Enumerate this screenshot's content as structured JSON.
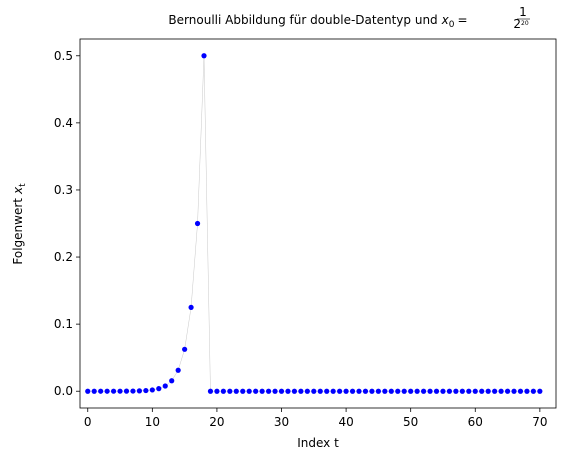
{
  "chart_data": {
    "type": "scatter",
    "title": "Bernoulli Abbildung für double-Datentyp und",
    "title_math": {
      "var": "x",
      "sub": "0",
      "eq": "=",
      "num": "1",
      "den": "2",
      "exp": "20"
    },
    "xlabel": "Index t",
    "ylabel": "Folgenwert",
    "ylabel_var": "x",
    "ylabel_sub": "t",
    "x": [
      0,
      1,
      2,
      3,
      4,
      5,
      6,
      7,
      8,
      9,
      10,
      11,
      12,
      13,
      14,
      15,
      16,
      17,
      18,
      19,
      20,
      21,
      22,
      23,
      24,
      25,
      26,
      27,
      28,
      29,
      30,
      31,
      32,
      33,
      34,
      35,
      36,
      37,
      38,
      39,
      40,
      41,
      42,
      43,
      44,
      45,
      46,
      47,
      48,
      49,
      50,
      51,
      52,
      53,
      54,
      55,
      56,
      57,
      58,
      59,
      60,
      61,
      62,
      63,
      64,
      65,
      66,
      67,
      68,
      69,
      70
    ],
    "series": [
      {
        "color": "#0000ff",
        "line_color": "#c8c8c8",
        "values": [
          1.9073486328125e-06,
          3.814697265625e-06,
          7.62939453125e-06,
          1.52587890625e-05,
          3.0517578125e-05,
          6.103515625e-05,
          0.0001220703125,
          0.000244140625,
          0.00048828125,
          0.0009765625,
          0.001953125,
          0.00390625,
          0.0078125,
          0.015625,
          0.03125,
          0.0625,
          0.125,
          0.25,
          0.5,
          0,
          0,
          0,
          0,
          0,
          0,
          0,
          0,
          0,
          0,
          0,
          0,
          0,
          0,
          0,
          0,
          0,
          0,
          0,
          0,
          0,
          0,
          0,
          0,
          0,
          0,
          0,
          0,
          0,
          0,
          0,
          0,
          0,
          0,
          0,
          0,
          0,
          0,
          0,
          0,
          0,
          0,
          0,
          0,
          0,
          0,
          0,
          0,
          0,
          0,
          0,
          0
        ]
      }
    ],
    "xlim": [
      -1.2,
      72.5
    ],
    "ylim": [
      -0.025,
      0.525
    ],
    "xticks": [
      0,
      10,
      20,
      30,
      40,
      50,
      60,
      70
    ],
    "yticks": [
      {
        "value": 0,
        "label": "0.0"
      },
      0.1,
      0.2,
      0.3,
      0.4,
      0.5
    ],
    "grid": false
  }
}
